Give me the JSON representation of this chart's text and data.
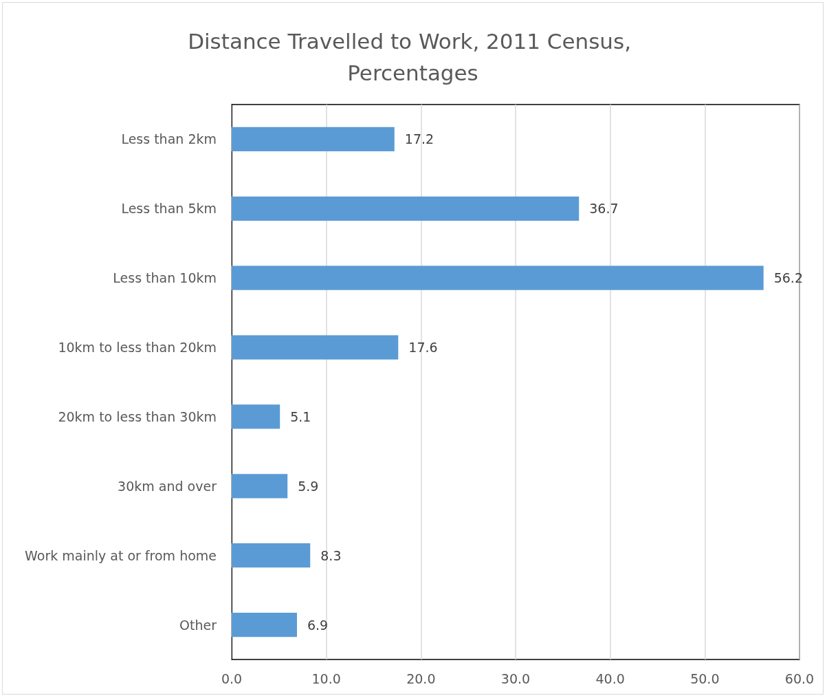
{
  "chart_data": {
    "type": "bar",
    "orientation": "horizontal",
    "title": "Distance Travelled to Work, 2011 Census, Percentages",
    "categories": [
      "Less than 2km",
      "Less than 5km",
      "Less than 10km",
      "10km to less than 20km",
      "20km to less than 30km",
      "30km and over",
      "Work mainly at or from home",
      "Other"
    ],
    "values": [
      17.2,
      36.7,
      56.2,
      17.6,
      5.1,
      5.9,
      8.3,
      6.9
    ],
    "color": "#5b9bd5",
    "xlim": [
      0,
      60
    ],
    "xticks": [
      {
        "value": 0,
        "label": "0.0"
      },
      {
        "value": 10,
        "label": "10.0"
      },
      {
        "value": 20,
        "label": "20.0"
      },
      {
        "value": 30,
        "label": "30.0"
      },
      {
        "value": 40,
        "label": "40.0"
      },
      {
        "value": 50,
        "label": "50.0"
      },
      {
        "value": 60,
        "label": "60.0"
      }
    ],
    "grid": "x",
    "data_labels": true
  }
}
